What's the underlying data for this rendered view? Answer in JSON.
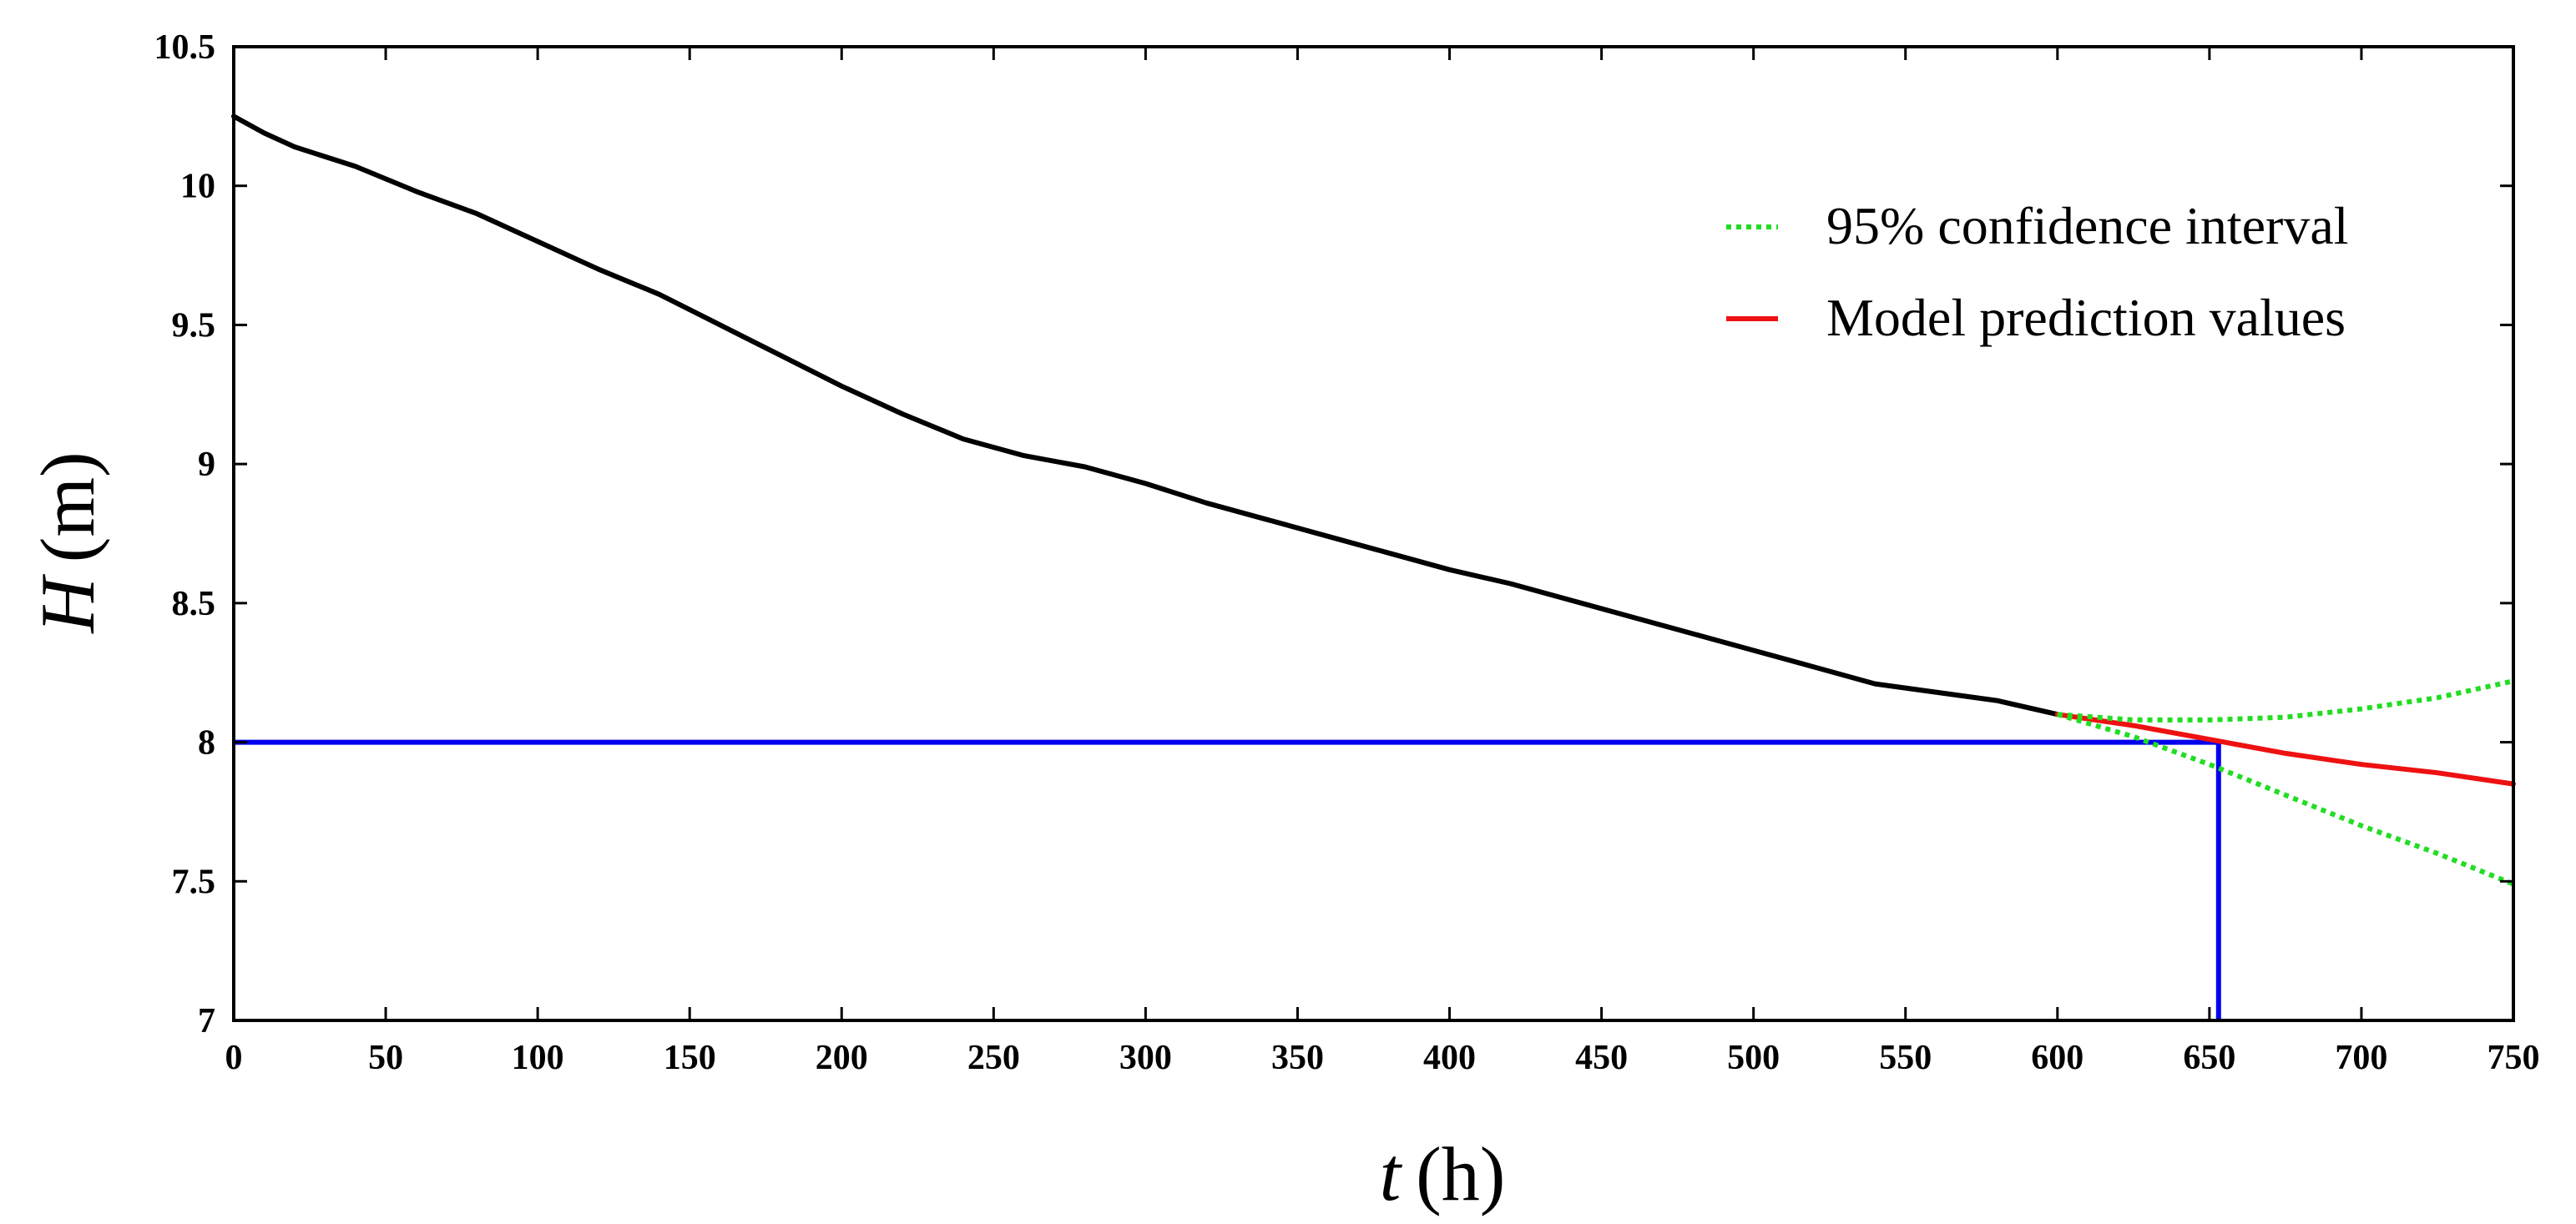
{
  "chart_data": {
    "type": "line",
    "title": "",
    "xlabel": {
      "var": "t",
      "unit": "(h)"
    },
    "ylabel": {
      "var": "H",
      "unit": "(m)"
    },
    "xlim": [
      0,
      750
    ],
    "ylim": [
      7,
      10.5
    ],
    "xticks": [
      0,
      50,
      100,
      150,
      200,
      250,
      300,
      350,
      400,
      450,
      500,
      550,
      600,
      650,
      700,
      750
    ],
    "yticks": [
      7,
      7.5,
      8,
      8.5,
      9,
      9.5,
      10,
      10.5
    ],
    "ytick_labels": [
      "7",
      "7.5",
      "8",
      "8.5",
      "9",
      "9.5",
      "10",
      "10.5"
    ],
    "grid": false,
    "legend_position": "top-right",
    "legend": [
      {
        "label": "95% confidence interval",
        "color": "#22dd22",
        "style": "dotted"
      },
      {
        "label": "Model prediction values",
        "color": "#ee1111",
        "style": "solid"
      }
    ],
    "series": [
      {
        "role": "observed",
        "color": "#000000",
        "style": "solid",
        "x": [
          0,
          5,
          10,
          20,
          40,
          60,
          80,
          100,
          120,
          140,
          160,
          180,
          200,
          220,
          240,
          260,
          280,
          300,
          320,
          340,
          360,
          380,
          400,
          420,
          440,
          460,
          480,
          500,
          520,
          540,
          560,
          580,
          600
        ],
        "y": [
          10.25,
          10.22,
          10.19,
          10.14,
          10.07,
          9.98,
          9.9,
          9.8,
          9.7,
          9.61,
          9.5,
          9.39,
          9.28,
          9.18,
          9.09,
          9.03,
          8.99,
          8.93,
          8.86,
          8.8,
          8.74,
          8.68,
          8.62,
          8.57,
          8.51,
          8.45,
          8.39,
          8.33,
          8.27,
          8.21,
          8.18,
          8.15,
          8.1
        ]
      },
      {
        "role": "prediction",
        "legend_ref": "Model prediction values",
        "color": "#ee1111",
        "style": "solid",
        "x": [
          600,
          625,
          650,
          675,
          700,
          725,
          750
        ],
        "y": [
          8.1,
          8.06,
          8.01,
          7.96,
          7.92,
          7.89,
          7.85
        ]
      },
      {
        "role": "ci_upper",
        "legend_ref": "95% confidence interval",
        "color": "#22dd22",
        "style": "dotted",
        "x": [
          600,
          625,
          650,
          675,
          700,
          725,
          750
        ],
        "y": [
          8.1,
          8.08,
          8.08,
          8.09,
          8.12,
          8.16,
          8.22
        ]
      },
      {
        "role": "ci_lower",
        "legend_ref": "95% confidence interval",
        "color": "#22dd22",
        "style": "dotted",
        "x": [
          600,
          625,
          650,
          675,
          700,
          725,
          750
        ],
        "y": [
          8.1,
          8.02,
          7.92,
          7.81,
          7.7,
          7.6,
          7.49
        ]
      }
    ],
    "reference_lines": [
      {
        "role": "threshold",
        "color": "#0000ee",
        "x": [
          0,
          653
        ],
        "y": [
          8,
          8
        ]
      },
      {
        "role": "crossing",
        "color": "#0000ee",
        "x": [
          653,
          653
        ],
        "y": [
          8,
          7
        ]
      }
    ]
  }
}
